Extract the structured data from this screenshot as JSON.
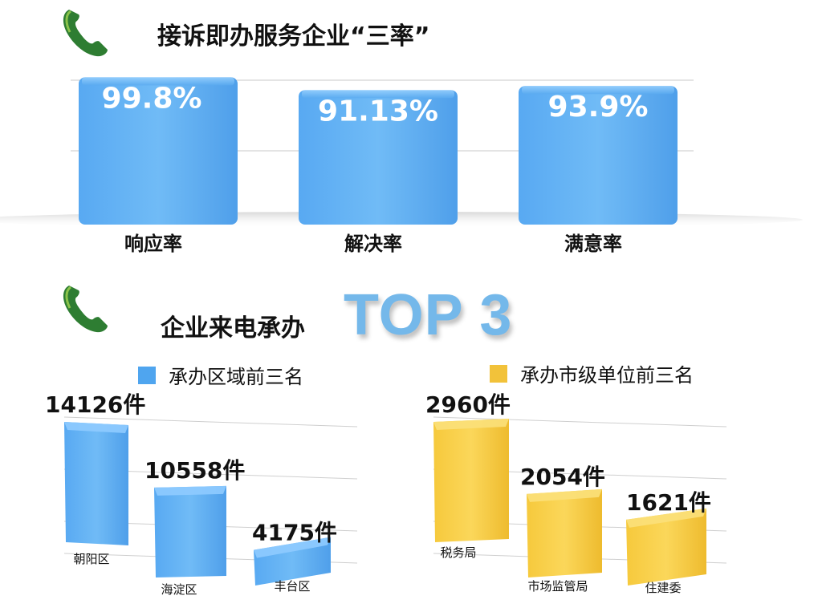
{
  "section1": {
    "title": "接诉即办服务企业“三率”",
    "phone_icon": "phone-handset-icon"
  },
  "section2": {
    "title": "企业来电承办",
    "highlight": "TOP 3",
    "phone_icon": "phone-handset-icon"
  },
  "colors": {
    "blue": "#5aaaf0",
    "yellow": "#f5c842",
    "top3": "#74b8ea"
  },
  "chart_data": [
    {
      "type": "bar",
      "categories": [
        "响应率",
        "解决率",
        "满意率"
      ],
      "values": [
        99.8,
        91.13,
        93.9
      ],
      "labels": [
        "99.8%",
        "91.13%",
        "93.9%"
      ],
      "ylim": [
        0,
        100
      ]
    },
    {
      "type": "bar",
      "legend": "承办区域前三名",
      "categories": [
        "朝阳区",
        "海淀区",
        "丰台区"
      ],
      "values": [
        14126,
        10558,
        4175
      ],
      "labels": [
        "14126件",
        "10558件",
        "4175件"
      ]
    },
    {
      "type": "bar",
      "legend": "承办市级单位前三名",
      "categories": [
        "税务局",
        "市场监管局",
        "住建委"
      ],
      "values": [
        2960,
        2054,
        1621
      ],
      "labels": [
        "2960件",
        "2054件",
        "1621件"
      ]
    }
  ]
}
